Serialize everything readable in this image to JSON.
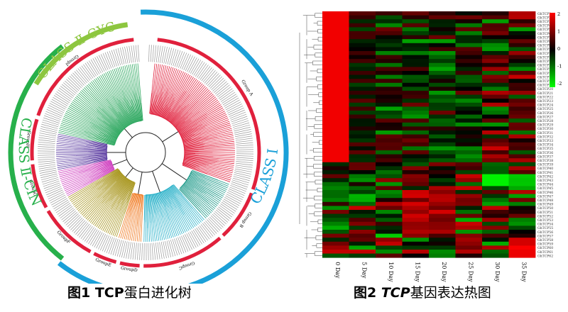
{
  "figure1": {
    "caption_prefix": "图1 ",
    "caption_bold": "TCP",
    "caption_rest": "蛋白进化树",
    "class_labels": {
      "class1": "CLASS Ⅰ",
      "class2_nin": "CLASS Ⅱ-CIN",
      "class2_cyc": "CLASS Ⅱ-CYC"
    },
    "group_labels": [
      "Group A",
      "Group B",
      "GroupC",
      "GroupD",
      "GroupE",
      "GroupF",
      "GroupG",
      "GroupH",
      "GroupI"
    ],
    "colors": {
      "class1_arc": "#1aa0d8",
      "class2_cin_arc": "#27b04b",
      "class2_cyc_arc": "#8dc63f",
      "group_arc": "#e0203c",
      "clade_red": "#e0203c",
      "clade_teal": "#1e9a8a",
      "clade_cyan": "#27b0c8",
      "clade_orange": "#f07a22",
      "clade_olive": "#a8961e",
      "clade_magenta": "#cf3fbf",
      "clade_purple": "#5a3aa0",
      "clade_green": "#2ea860"
    }
  },
  "figure2": {
    "caption_prefix": "图2 ",
    "caption_bold": "TCP",
    "caption_rest": "基因表达热图",
    "day_labels": [
      "0 Day",
      "5 Day",
      "10 Day",
      "15 Day",
      "20 Day",
      "25 Day",
      "30 Day",
      "35 Day"
    ],
    "legend_ticks": [
      "2",
      "1",
      "0",
      "-1",
      "-2"
    ],
    "row_label_prefix": "GhTCP",
    "colors": {
      "high": "#ff0000",
      "mid": "#000000",
      "low": "#00ff00"
    }
  },
  "chart_data": {
    "type": "heatmap",
    "columns": [
      "0 Day",
      "5 Day",
      "10 Day",
      "15 Day",
      "20 Day",
      "25 Day",
      "30 Day",
      "35 Day"
    ],
    "color_scale": {
      "min": -2,
      "max": 2,
      "ticks": [
        2,
        1,
        0,
        -1,
        -2
      ]
    }
  }
}
